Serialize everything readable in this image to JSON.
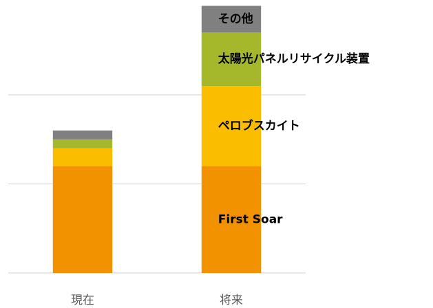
{
  "chart_data": {
    "type": "stacked_bar",
    "categories": [
      "現在",
      "将来"
    ],
    "series": [
      {
        "name": "First Soar",
        "color": "#f39200",
        "values": [
          1.2,
          1.2
        ]
      },
      {
        "name": "ペロブスカイト",
        "color": "#fbbd00",
        "values": [
          0.2,
          0.9
        ]
      },
      {
        "name": "太陽光パネルリサイクル装置",
        "color": "#a5b72a",
        "values": [
          0.1,
          0.6
        ]
      },
      {
        "name": "その他",
        "color": "#808080",
        "values": [
          0.1,
          0.3
        ]
      }
    ],
    "ylim": [
      0,
      3
    ],
    "yticks": [
      0,
      1,
      2
    ],
    "grid": true
  }
}
